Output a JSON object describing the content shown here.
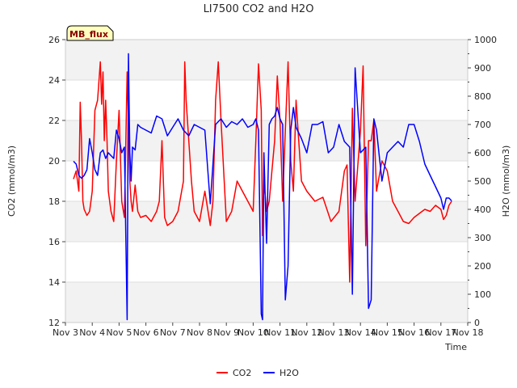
{
  "chart_data": {
    "type": "line",
    "title": "LI7500 CO2 and H2O",
    "xlabel": "Time",
    "ylabel_left": "CO2 (mmol/m3)",
    "ylabel_right": "H2O (mmol/m3)",
    "badge": "MB_flux",
    "x_ticks": [
      "Nov 3",
      "Nov 4",
      "Nov 5",
      "Nov 6",
      "Nov 7",
      "Nov 8",
      "Nov 9",
      "Nov 10",
      "Nov 11",
      "Nov 12",
      "Nov 13",
      "Nov 14",
      "Nov 15",
      "Nov 16",
      "Nov 17",
      "Nov 18"
    ],
    "xlim": [
      3,
      18
    ],
    "ylim_left": [
      12,
      26
    ],
    "ylim_right": [
      0,
      1000
    ],
    "yticks_left": [
      "12",
      "14",
      "16",
      "18",
      "20",
      "22",
      "24",
      "26"
    ],
    "yticks_right": [
      "0",
      "100",
      "200",
      "300",
      "400",
      "500",
      "600",
      "700",
      "800",
      "900",
      "1000"
    ],
    "legend_position": "bottom-center",
    "series": [
      {
        "name": "CO2",
        "color": "#ff0000",
        "axis": "left",
        "x": [
          3.3,
          3.4,
          3.5,
          3.55,
          3.6,
          3.65,
          3.7,
          3.8,
          3.9,
          4.0,
          4.1,
          4.2,
          4.3,
          4.35,
          4.4,
          4.45,
          4.5,
          4.55,
          4.6,
          4.7,
          4.8,
          4.9,
          5.0,
          5.1,
          5.2,
          5.3,
          5.35,
          5.4,
          5.45,
          5.5,
          5.6,
          5.7,
          5.8,
          6.0,
          6.2,
          6.4,
          6.5,
          6.6,
          6.7,
          6.8,
          7.0,
          7.2,
          7.4,
          7.45,
          7.5,
          7.6,
          7.7,
          7.8,
          8.0,
          8.2,
          8.4,
          8.5,
          8.6,
          8.7,
          8.8,
          9.0,
          9.2,
          9.4,
          9.6,
          9.8,
          10.0,
          10.1,
          10.2,
          10.3,
          10.35,
          10.4,
          10.5,
          10.6,
          10.7,
          10.8,
          10.9,
          11.0,
          11.1,
          11.2,
          11.3,
          11.4,
          11.5,
          11.6,
          11.7,
          11.8,
          12.0,
          12.3,
          12.6,
          12.9,
          13.2,
          13.4,
          13.5,
          13.6,
          13.7,
          13.8,
          14.0,
          14.1,
          14.2,
          14.3,
          14.4,
          14.5,
          14.6,
          14.8,
          15.0,
          15.2,
          15.4,
          15.6,
          15.8,
          16.0,
          16.2,
          16.4,
          16.6,
          16.8,
          17.0,
          17.1,
          17.2,
          17.3,
          17.4
        ],
        "values": [
          19.1,
          19.5,
          18.5,
          22.9,
          21.0,
          18.0,
          17.6,
          17.3,
          17.5,
          18.5,
          22.5,
          23.0,
          24.9,
          22.8,
          24.4,
          21.0,
          23.0,
          21.0,
          18.5,
          17.5,
          17.0,
          20.0,
          22.5,
          18.0,
          17.2,
          24.4,
          22.0,
          19.0,
          18.0,
          17.5,
          18.8,
          17.5,
          17.2,
          17.3,
          17.0,
          17.5,
          18.0,
          21.0,
          17.2,
          16.8,
          17.0,
          17.5,
          19.0,
          24.9,
          23.0,
          21.0,
          19.0,
          17.5,
          17.0,
          18.5,
          16.8,
          18.0,
          23.0,
          24.9,
          22.0,
          17.0,
          17.5,
          19.0,
          18.5,
          18.0,
          17.5,
          21.0,
          24.8,
          22.5,
          16.3,
          19.0,
          17.5,
          18.0,
          19.5,
          21.0,
          24.2,
          22.0,
          18.0,
          21.5,
          24.9,
          20.0,
          18.5,
          23.0,
          21.0,
          19.0,
          18.5,
          18.0,
          18.2,
          17.0,
          17.5,
          19.5,
          19.8,
          14.0,
          22.6,
          18.0,
          21.5,
          24.7,
          15.8,
          21.0,
          21.0,
          22.0,
          18.5,
          20.0,
          19.5,
          18.0,
          17.5,
          17.0,
          16.9,
          17.2,
          17.4,
          17.6,
          17.5,
          17.8,
          17.6,
          17.1,
          17.3,
          17.8,
          18.0
        ]
      },
      {
        "name": "H2O",
        "color": "#0000ff",
        "axis": "right",
        "x": [
          3.3,
          3.4,
          3.5,
          3.6,
          3.7,
          3.8,
          3.9,
          4.0,
          4.1,
          4.2,
          4.3,
          4.4,
          4.5,
          4.6,
          4.7,
          4.8,
          4.9,
          5.0,
          5.1,
          5.2,
          5.3,
          5.35,
          5.4,
          5.45,
          5.5,
          5.6,
          5.7,
          5.8,
          6.0,
          6.2,
          6.4,
          6.6,
          6.8,
          7.0,
          7.2,
          7.4,
          7.6,
          7.8,
          8.0,
          8.2,
          8.4,
          8.6,
          8.8,
          9.0,
          9.2,
          9.4,
          9.6,
          9.8,
          10.0,
          10.1,
          10.2,
          10.3,
          10.35,
          10.4,
          10.5,
          10.6,
          10.7,
          10.8,
          10.9,
          11.0,
          11.1,
          11.2,
          11.3,
          11.4,
          11.5,
          11.6,
          11.8,
          12.0,
          12.2,
          12.4,
          12.6,
          12.8,
          13.0,
          13.2,
          13.4,
          13.6,
          13.7,
          13.8,
          14.0,
          14.2,
          14.3,
          14.4,
          14.5,
          14.6,
          14.8,
          15.0,
          15.2,
          15.4,
          15.6,
          15.8,
          16.0,
          16.2,
          16.4,
          16.6,
          16.8,
          17.0,
          17.1,
          17.2,
          17.3,
          17.4
        ],
        "values": [
          570,
          560,
          520,
          510,
          520,
          540,
          650,
          600,
          540,
          520,
          600,
          610,
          580,
          600,
          590,
          580,
          680,
          650,
          600,
          620,
          10,
          950,
          600,
          500,
          620,
          610,
          700,
          690,
          680,
          670,
          730,
          720,
          660,
          690,
          720,
          680,
          660,
          700,
          690,
          680,
          420,
          700,
          720,
          690,
          710,
          700,
          720,
          690,
          700,
          720,
          680,
          30,
          10,
          600,
          280,
          700,
          720,
          730,
          760,
          720,
          700,
          80,
          200,
          680,
          760,
          690,
          650,
          600,
          700,
          700,
          710,
          600,
          620,
          700,
          640,
          620,
          100,
          900,
          600,
          620,
          50,
          80,
          720,
          680,
          500,
          600,
          620,
          640,
          620,
          700,
          700,
          640,
          560,
          520,
          480,
          440,
          400,
          440,
          440,
          430
        ]
      }
    ]
  }
}
